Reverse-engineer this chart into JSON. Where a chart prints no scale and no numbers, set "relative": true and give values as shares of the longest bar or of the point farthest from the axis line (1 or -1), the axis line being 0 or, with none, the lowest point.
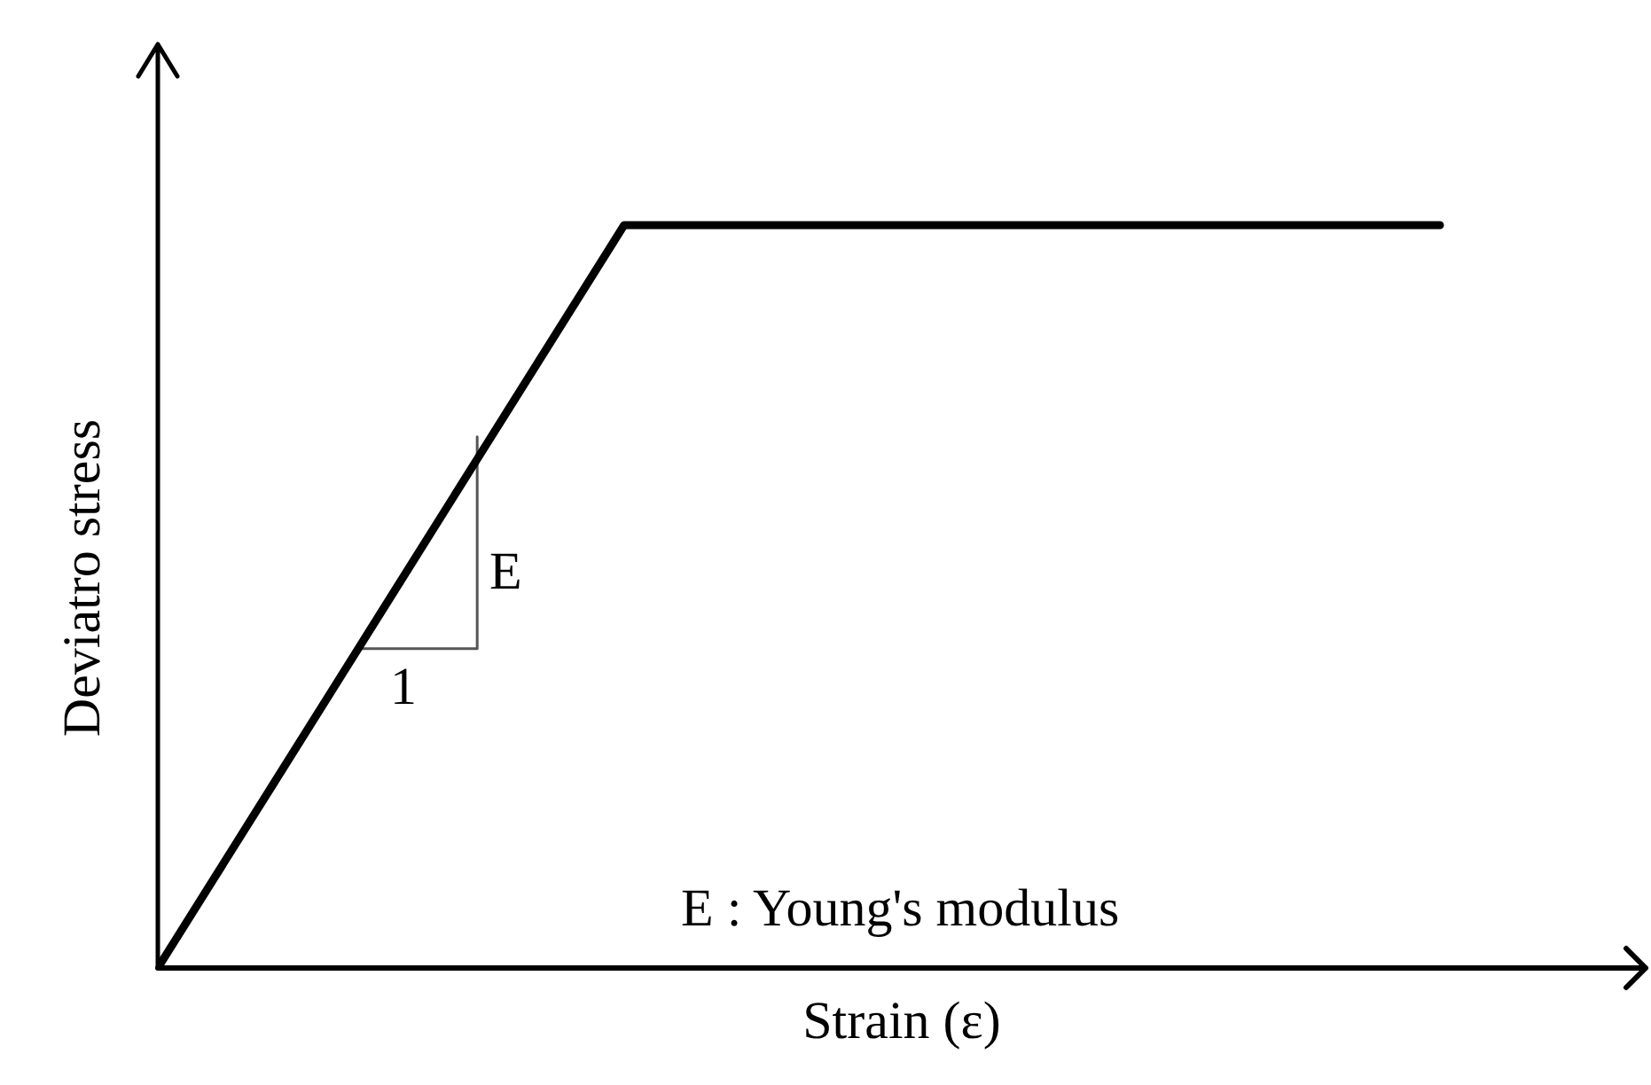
{
  "chart_data": {
    "type": "line",
    "relative": true,
    "categories": [
      null,
      null,
      null,
      null,
      null,
      null,
      null,
      null,
      null,
      null,
      null,
      null
    ],
    "series": [
      {
        "color": "#000000",
        "values": [
          0,
          0.25,
          0.5,
          0.75,
          1,
          1,
          1,
          1,
          1,
          1,
          1,
          1
        ]
      }
    ],
    "xlabel": "Strain (ε)",
    "ylabel": "Deviatro stress",
    "annotations": [
      "E",
      "1",
      "E : Young's modulus"
    ],
    "line_style": "solid"
  }
}
